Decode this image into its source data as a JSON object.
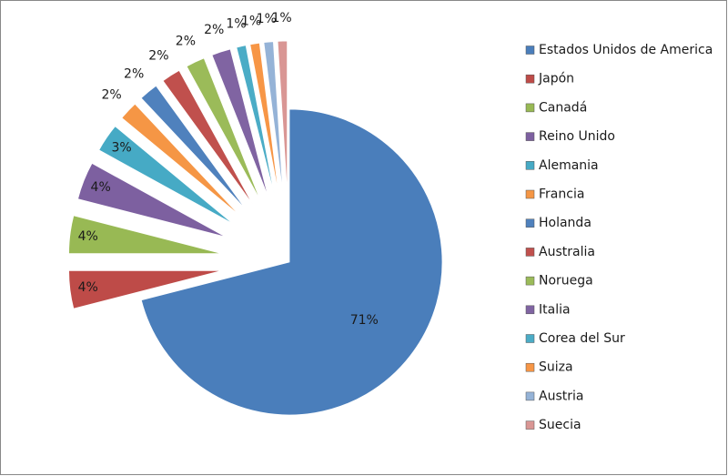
{
  "chart_data": {
    "type": "pie",
    "categories": [
      "Estados Unidos de America",
      "Japón",
      "Canadá",
      "Reino Unido",
      "Alemania",
      "Francia",
      "Holanda",
      "Australia",
      "Noruega",
      "Italia",
      "Corea del Sur",
      "Suiza",
      "Austria",
      "Suecia"
    ],
    "values": [
      71,
      4,
      4,
      4,
      3,
      2,
      2,
      2,
      2,
      2,
      1,
      1,
      1,
      1
    ],
    "value_labels": [
      "71%",
      "4%",
      "4%",
      "4%",
      "3%",
      "2%",
      "2%",
      "2%",
      "2%",
      "2%",
      "1%",
      "1%",
      "1%",
      "1%"
    ],
    "colors": [
      "#4a7ebb",
      "#be4b48",
      "#98b954",
      "#7d60a0",
      "#46aac5",
      "#f59645",
      "#4f81bd",
      "#c0504d",
      "#9bbb59",
      "#8064a2",
      "#4bacc6",
      "#f79646",
      "#95b3d7",
      "#d99694"
    ],
    "legend": "right"
  }
}
